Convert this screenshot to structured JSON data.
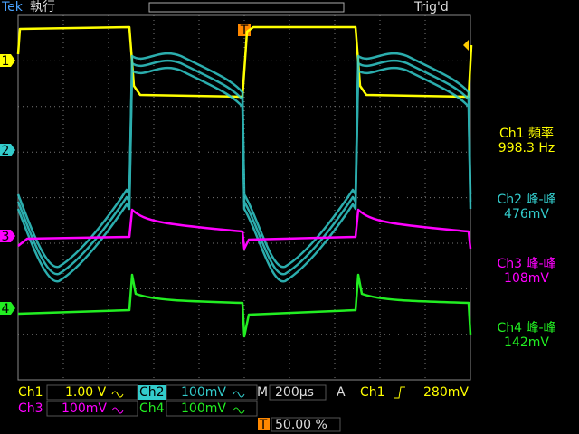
{
  "header": {
    "brand": "Tek",
    "status": "執行",
    "trigger_status": "Trig'd"
  },
  "markers": {
    "ch1": "1",
    "ch2": "2",
    "ch3": "3",
    "ch4": "4",
    "trigger": "T"
  },
  "measurements": [
    {
      "label": "Ch1 頻率",
      "value": "998.3 Hz"
    },
    {
      "label": "Ch2 峰-峰",
      "value": "476mV"
    },
    {
      "label": "Ch3 峰-峰",
      "value": "108mV"
    },
    {
      "label": "Ch4 峰-峰",
      "value": "142mV"
    }
  ],
  "settings": {
    "ch1": {
      "label": "Ch1",
      "scale": "1.00 V"
    },
    "ch2": {
      "label": "Ch2",
      "scale": "100mV"
    },
    "ch3": {
      "label": "Ch3",
      "scale": "100mV"
    },
    "ch4": {
      "label": "Ch4",
      "scale": "100mV"
    },
    "timebase": {
      "label": "M",
      "value": "200µs"
    },
    "trigger": {
      "label": "A",
      "source": "Ch1",
      "level": "280mV"
    },
    "position": {
      "label": "T",
      "value": "50.00 %"
    }
  }
}
